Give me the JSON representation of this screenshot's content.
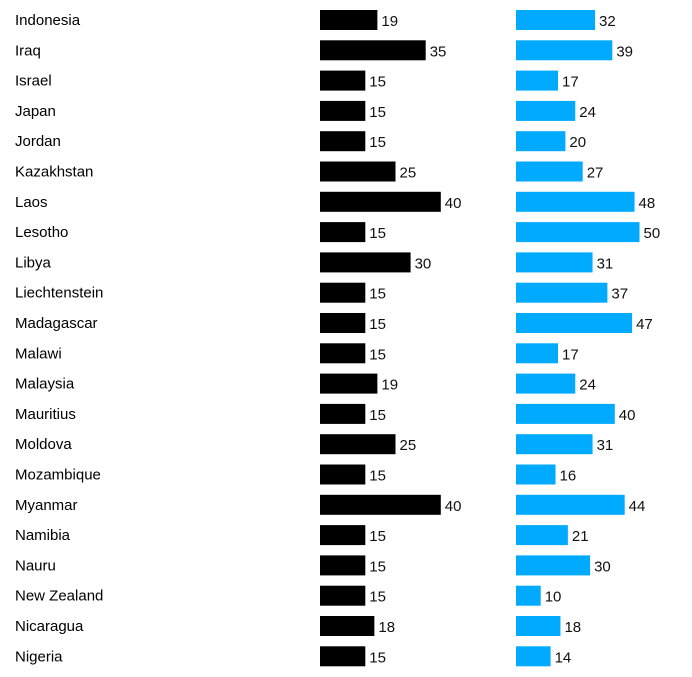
{
  "chart_data": {
    "type": "bar",
    "orientation": "horizontal",
    "grid": false,
    "categories": [
      "Indonesia",
      "Iraq",
      "Israel",
      "Japan",
      "Jordan",
      "Kazakhstan",
      "Laos",
      "Lesotho",
      "Libya",
      "Liechtenstein",
      "Madagascar",
      "Malawi",
      "Malaysia",
      "Mauritius",
      "Moldova",
      "Mozambique",
      "Myanmar",
      "Namibia",
      "Nauru",
      "New Zealand",
      "Nicaragua",
      "Nigeria"
    ],
    "series": [
      {
        "color": "#000000",
        "values": [
          19,
          35,
          15,
          15,
          15,
          25,
          40,
          15,
          30,
          15,
          15,
          15,
          19,
          15,
          25,
          15,
          40,
          15,
          15,
          15,
          18,
          15
        ]
      },
      {
        "color": "#00aaff",
        "values": [
          32,
          39,
          17,
          24,
          20,
          27,
          48,
          50,
          31,
          37,
          47,
          17,
          24,
          40,
          31,
          16,
          44,
          21,
          30,
          10,
          18,
          14
        ]
      }
    ]
  }
}
